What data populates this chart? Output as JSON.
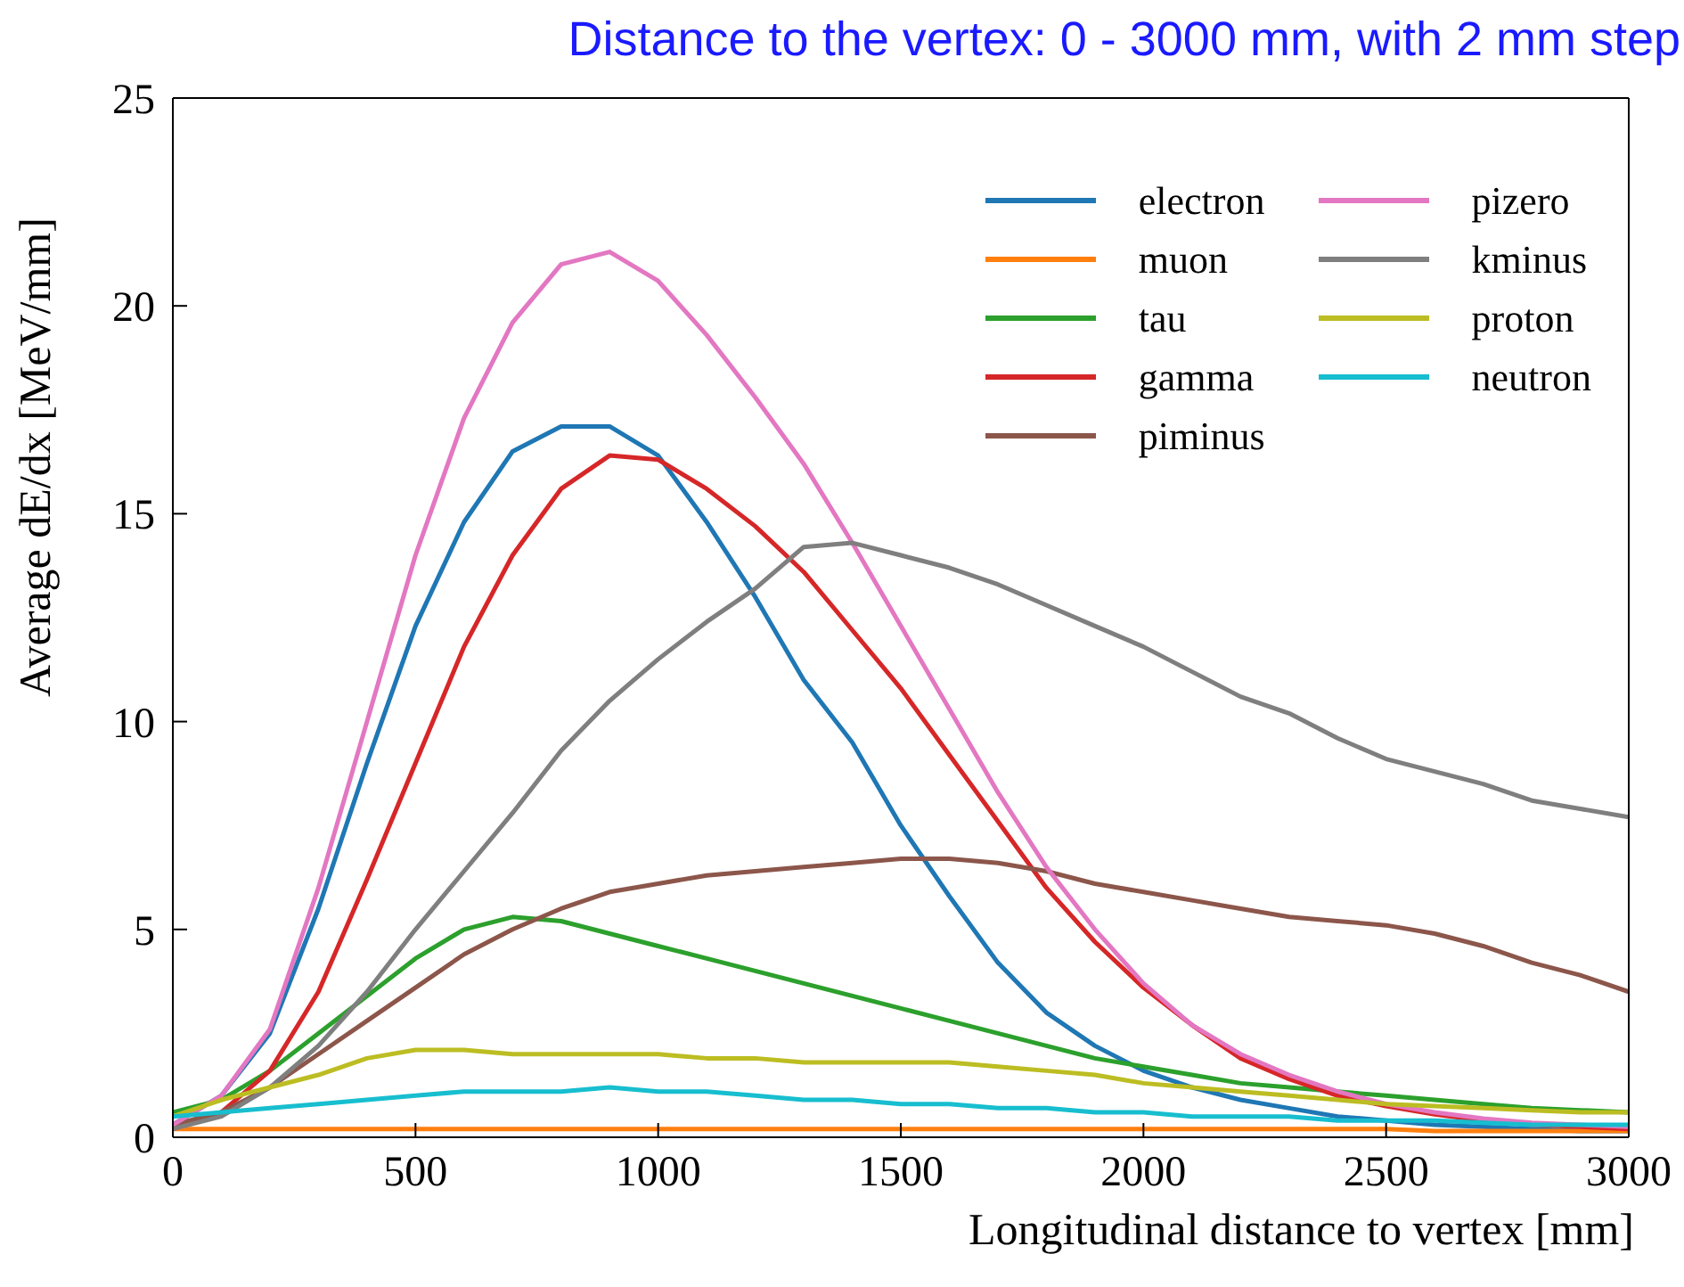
{
  "chart_data": {
    "type": "line",
    "title": "Distance to the vertex: 0 - 3000 mm, with 2 mm step",
    "xlabel": "Longitudinal distance to vertex [mm]",
    "ylabel": "Average dE/dx [MeV/mm]",
    "x": [
      0,
      100,
      200,
      300,
      400,
      500,
      600,
      700,
      800,
      900,
      1000,
      1100,
      1200,
      1300,
      1400,
      1500,
      1600,
      1700,
      1800,
      1900,
      2000,
      2100,
      2200,
      2300,
      2400,
      2500,
      2600,
      2700,
      2800,
      2900,
      3000
    ],
    "series": [
      {
        "name": "electron",
        "color": "#1f77b4",
        "values": [
          0.3,
          1.0,
          2.5,
          5.5,
          9.0,
          12.3,
          14.8,
          16.5,
          17.1,
          17.1,
          16.4,
          14.8,
          13.0,
          11.0,
          9.5,
          7.5,
          5.8,
          4.2,
          3.0,
          2.2,
          1.6,
          1.2,
          0.9,
          0.7,
          0.5,
          0.4,
          0.3,
          0.25,
          0.2,
          0.15,
          0.15
        ]
      },
      {
        "name": "muon",
        "color": "#ff7f0e",
        "values": [
          0.2,
          0.2,
          0.2,
          0.2,
          0.2,
          0.2,
          0.2,
          0.2,
          0.2,
          0.2,
          0.2,
          0.2,
          0.2,
          0.2,
          0.2,
          0.2,
          0.2,
          0.2,
          0.2,
          0.2,
          0.2,
          0.2,
          0.2,
          0.2,
          0.2,
          0.2,
          0.15,
          0.15,
          0.15,
          0.15,
          0.15
        ]
      },
      {
        "name": "tau",
        "color": "#2ca02c",
        "values": [
          0.6,
          0.9,
          1.6,
          2.5,
          3.4,
          4.3,
          5.0,
          5.3,
          5.2,
          4.9,
          4.6,
          4.3,
          4.0,
          3.7,
          3.4,
          3.1,
          2.8,
          2.5,
          2.2,
          1.9,
          1.7,
          1.5,
          1.3,
          1.2,
          1.1,
          1.0,
          0.9,
          0.8,
          0.7,
          0.65,
          0.6
        ]
      },
      {
        "name": "gamma",
        "color": "#d62728",
        "values": [
          0.2,
          0.6,
          1.6,
          3.5,
          6.2,
          9.0,
          11.8,
          14.0,
          15.6,
          16.4,
          16.3,
          15.6,
          14.7,
          13.6,
          12.2,
          10.8,
          9.2,
          7.6,
          6.0,
          4.7,
          3.6,
          2.7,
          1.9,
          1.4,
          1.0,
          0.75,
          0.55,
          0.4,
          0.3,
          0.25,
          0.2
        ]
      },
      {
        "name": "piminus",
        "color": "#8c564b",
        "values": [
          0.3,
          0.6,
          1.2,
          2.0,
          2.8,
          3.6,
          4.4,
          5.0,
          5.5,
          5.9,
          6.1,
          6.3,
          6.4,
          6.5,
          6.6,
          6.7,
          6.7,
          6.6,
          6.4,
          6.1,
          5.9,
          5.7,
          5.5,
          5.3,
          5.2,
          5.1,
          4.9,
          4.6,
          4.2,
          3.9,
          3.5
        ]
      },
      {
        "name": "pizero",
        "color": "#e377c2",
        "values": [
          0.3,
          1.0,
          2.6,
          6.0,
          10.0,
          14.0,
          17.3,
          19.6,
          21.0,
          21.3,
          20.6,
          19.3,
          17.8,
          16.2,
          14.3,
          12.3,
          10.3,
          8.3,
          6.5,
          5.0,
          3.7,
          2.7,
          2.0,
          1.5,
          1.1,
          0.8,
          0.6,
          0.45,
          0.35,
          0.3,
          0.25
        ]
      },
      {
        "name": "kminus",
        "color": "#7f7f7f",
        "values": [
          0.2,
          0.5,
          1.2,
          2.2,
          3.5,
          5.0,
          6.4,
          7.8,
          9.3,
          10.5,
          11.5,
          12.4,
          13.2,
          14.2,
          14.3,
          14.0,
          13.7,
          13.3,
          12.8,
          12.3,
          11.8,
          11.2,
          10.6,
          10.2,
          9.6,
          9.1,
          8.8,
          8.5,
          8.1,
          7.9,
          7.7
        ]
      },
      {
        "name": "proton",
        "color": "#bcbd22",
        "values": [
          0.5,
          0.9,
          1.2,
          1.5,
          1.9,
          2.1,
          2.1,
          2.0,
          2.0,
          2.0,
          2.0,
          1.9,
          1.9,
          1.8,
          1.8,
          1.8,
          1.8,
          1.7,
          1.6,
          1.5,
          1.3,
          1.2,
          1.1,
          1.0,
          0.9,
          0.8,
          0.75,
          0.7,
          0.65,
          0.6,
          0.6
        ]
      },
      {
        "name": "neutron",
        "color": "#17becf",
        "values": [
          0.5,
          0.6,
          0.7,
          0.8,
          0.9,
          1.0,
          1.1,
          1.1,
          1.1,
          1.2,
          1.1,
          1.1,
          1.0,
          0.9,
          0.9,
          0.8,
          0.8,
          0.7,
          0.7,
          0.6,
          0.6,
          0.5,
          0.5,
          0.5,
          0.4,
          0.4,
          0.4,
          0.35,
          0.3,
          0.3,
          0.3
        ]
      }
    ],
    "xlim": [
      0,
      3000
    ],
    "xticks": [
      0,
      500,
      1000,
      1500,
      2000,
      2500,
      3000
    ],
    "ylim": [
      0,
      25
    ],
    "yticks": [
      0,
      5,
      10,
      15,
      20,
      25
    ],
    "legend": "top right",
    "marker": "none",
    "line_style": "solid",
    "grid": false
  }
}
